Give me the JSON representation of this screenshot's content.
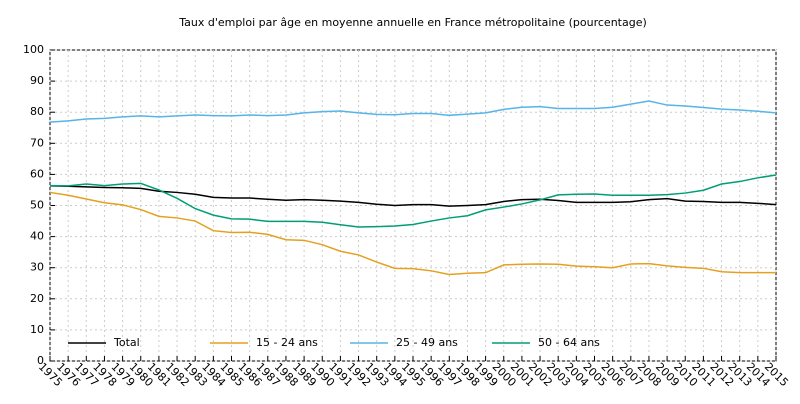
{
  "chart_data": {
    "type": "line",
    "title": "Taux d'emploi par âge en moyenne annuelle en France métropolitaine (pourcentage)",
    "x": [
      1975,
      1976,
      1977,
      1978,
      1979,
      1980,
      1981,
      1982,
      1983,
      1984,
      1985,
      1986,
      1987,
      1988,
      1989,
      1990,
      1991,
      1992,
      1993,
      1994,
      1995,
      1996,
      1997,
      1998,
      1999,
      2000,
      2001,
      2002,
      2003,
      2004,
      2005,
      2006,
      2007,
      2008,
      2009,
      2010,
      2011,
      2012,
      2013,
      2014,
      2015
    ],
    "xlim": [
      1975,
      2015
    ],
    "ylim": [
      0,
      100
    ],
    "yticks": [
      0,
      10,
      20,
      30,
      40,
      50,
      60,
      70,
      80,
      90,
      100
    ],
    "grid": true,
    "legend": "bottom",
    "series": [
      {
        "name": "Total",
        "color": "#000000",
        "values": [
          56.3,
          56.2,
          56.0,
          55.8,
          55.7,
          55.5,
          54.6,
          54.2,
          53.6,
          52.6,
          52.4,
          52.4,
          52.0,
          51.7,
          51.9,
          51.7,
          51.4,
          51.0,
          50.4,
          50.0,
          50.3,
          50.3,
          49.8,
          50.0,
          50.3,
          51.3,
          51.9,
          52.0,
          51.6,
          51.0,
          51.0,
          51.0,
          51.2,
          51.9,
          52.2,
          51.4,
          51.3,
          51.0,
          51.0,
          50.7,
          50.3
        ]
      },
      {
        "name": "15 - 24 ans",
        "color": "#e5a01f",
        "values": [
          54.2,
          53.3,
          52.1,
          50.9,
          50.2,
          48.7,
          46.5,
          46.0,
          45.0,
          41.9,
          41.3,
          41.4,
          40.7,
          39.0,
          38.8,
          37.4,
          35.3,
          34.1,
          31.8,
          29.8,
          29.7,
          29.0,
          27.8,
          28.2,
          28.4,
          30.9,
          31.1,
          31.2,
          31.1,
          30.5,
          30.3,
          30.0,
          31.2,
          31.3,
          30.6,
          30.1,
          29.8,
          28.7,
          28.4,
          28.4,
          28.4
        ]
      },
      {
        "name": "25 - 49 ans",
        "color": "#56b4e9",
        "values": [
          76.8,
          77.2,
          77.8,
          78.0,
          78.5,
          78.8,
          78.5,
          78.8,
          79.1,
          78.9,
          78.8,
          79.1,
          78.9,
          79.1,
          79.8,
          80.2,
          80.4,
          79.8,
          79.3,
          79.2,
          79.6,
          79.6,
          79.0,
          79.4,
          79.8,
          80.9,
          81.6,
          81.8,
          81.2,
          81.2,
          81.2,
          81.6,
          82.6,
          83.6,
          82.3,
          82.0,
          81.5,
          81.0,
          80.7,
          80.3,
          79.8
        ]
      },
      {
        "name": "50 - 64 ans",
        "color": "#009e73",
        "values": [
          56.4,
          56.3,
          56.9,
          56.4,
          56.9,
          57.1,
          55.0,
          52.3,
          49.0,
          46.9,
          45.7,
          45.6,
          44.9,
          44.9,
          44.9,
          44.6,
          43.8,
          43.1,
          43.2,
          43.4,
          43.9,
          45.0,
          46.0,
          46.7,
          48.6,
          49.5,
          50.5,
          51.8,
          53.4,
          53.6,
          53.7,
          53.3,
          53.3,
          53.3,
          53.5,
          54.0,
          54.9,
          56.9,
          57.7,
          58.9,
          59.8
        ]
      }
    ]
  }
}
